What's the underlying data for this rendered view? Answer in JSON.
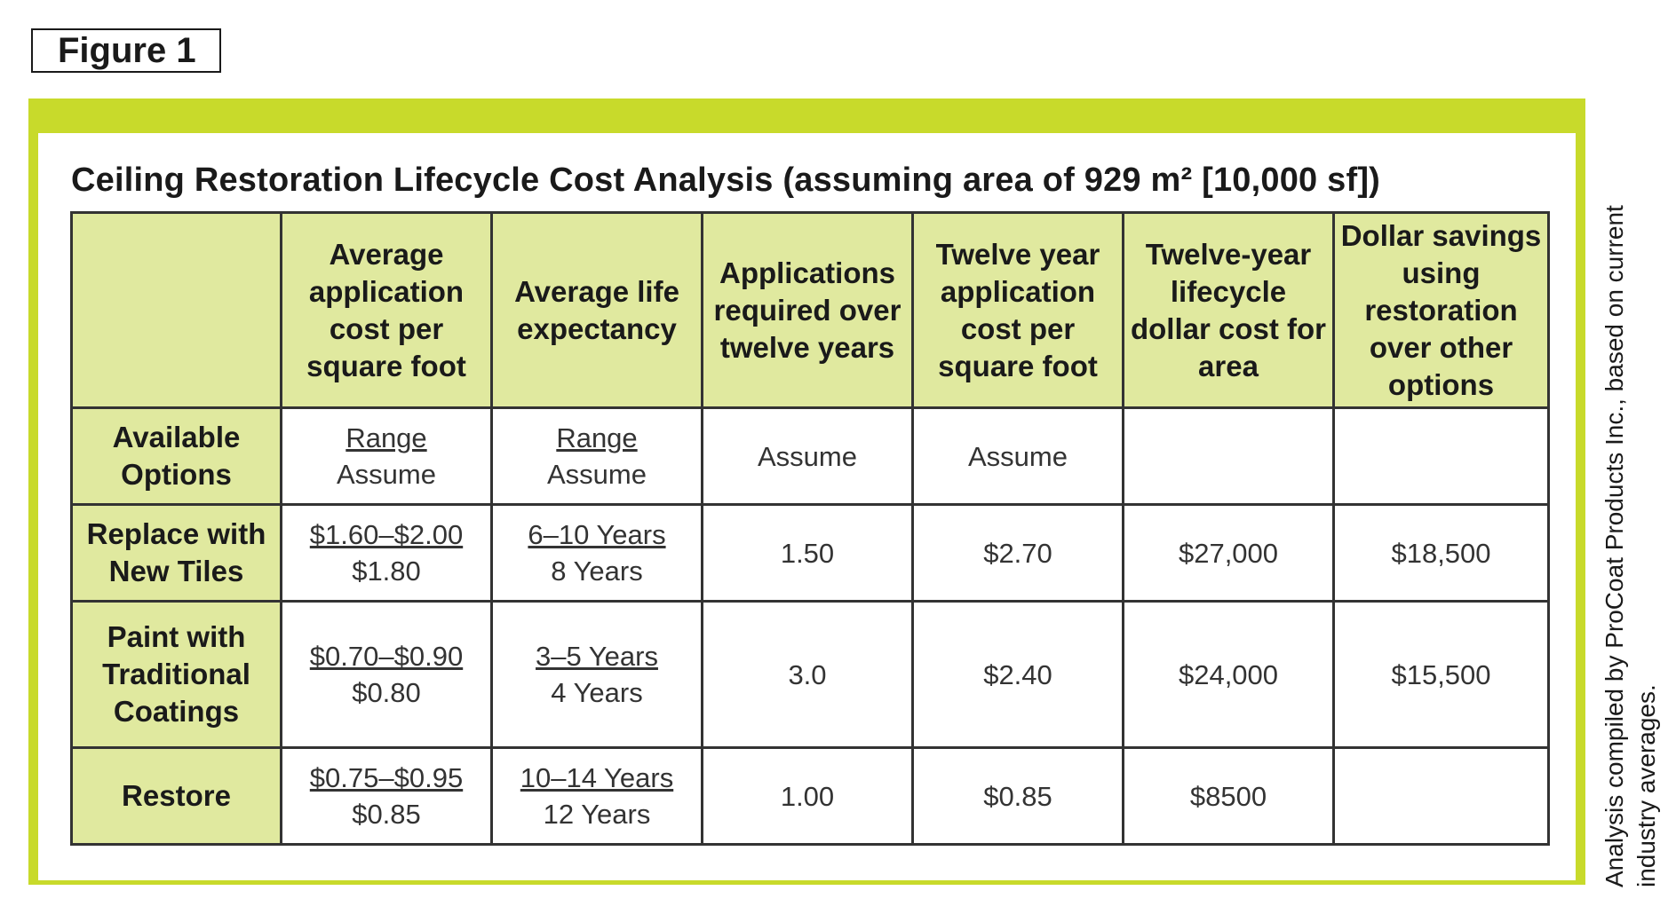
{
  "figure_label": "Figure 1",
  "title": "Ceiling Restoration Lifecycle Cost Analysis (assuming area of 929 m² [10,000 sf])",
  "columns": [
    "",
    "Average application cost per square foot",
    "Average life expectancy",
    "Applications required over twelve years",
    "Twelve year application cost per square foot",
    "Twelve-year lifecycle dollar cost for area",
    "Dollar savings using restoration over other options"
  ],
  "rows": [
    {
      "label": "Available Options",
      "cost_range": "Range",
      "cost_assumed": "Assume",
      "life_range": "Range",
      "life_assumed": "Assume",
      "applications": "Assume",
      "twelve_year_cost": "Assume",
      "lifecycle_cost": "",
      "savings": ""
    },
    {
      "label": "Replace with New Tiles",
      "cost_range": "$1.60–$2.00",
      "cost_assumed": "$1.80",
      "life_range": "6–10 Years",
      "life_assumed": "8 Years",
      "applications": "1.50",
      "twelve_year_cost": "$2.70",
      "lifecycle_cost": "$27,000",
      "savings": "$18,500"
    },
    {
      "label": "Paint with Traditional Coatings",
      "cost_range": "$0.70–$0.90",
      "cost_assumed": "$0.80",
      "life_range": "3–5 Years",
      "life_assumed": "4 Years",
      "applications": "3.0",
      "twelve_year_cost": "$2.40",
      "lifecycle_cost": "$24,000",
      "savings": "$15,500"
    },
    {
      "label": "Restore",
      "cost_range": "$0.75–$0.95",
      "cost_assumed": "$0.85",
      "life_range": "10–14 Years",
      "life_assumed": "12 Years",
      "applications": "1.00",
      "twelve_year_cost": "$0.85",
      "lifecycle_cost": "$8500",
      "savings": ""
    }
  ],
  "side_note": "Analysis compiled by ProCoat Products Inc., based on current industry averages.",
  "colors": {
    "frame_green": "#c8da2b",
    "header_fill": "#e0e99f",
    "border": "#333333"
  }
}
